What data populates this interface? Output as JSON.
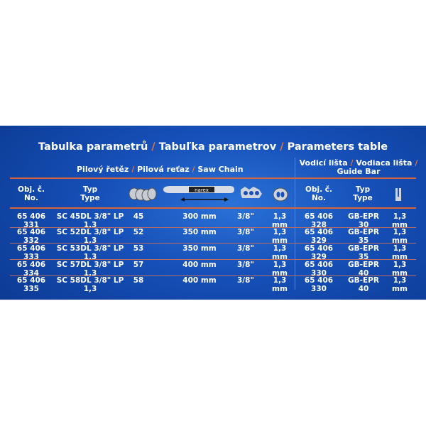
{
  "title": {
    "cz": "Tabulka parametrů",
    "sk": "Tabuľka parametrov",
    "en": "Parameters table",
    "sep": "/"
  },
  "chain_header": {
    "cz": "Pilový řetěz",
    "sk": "Pilová reťaz",
    "en": "Saw Chain"
  },
  "bar_header": {
    "cz": "Vodicí lišta",
    "sk": "Vodiaca lišta",
    "en": "Guide Bar"
  },
  "columns": {
    "obj_cz": "Obj. č.",
    "obj_en": "No.",
    "typ_cz": "Typ",
    "typ_en": "Type",
    "icons": [
      "drive-links-icon",
      "bar-length-icon",
      "chain-pitch-icon",
      "gauge-icon",
      "bar-groove-icon"
    ],
    "bar_logo": "narex"
  },
  "accent": "#e8733a",
  "rows": [
    {
      "obj": "65 406 331",
      "type": "SC 45DL 3/8\" LP 1,3",
      "links": "45",
      "length": "300 mm",
      "pitch": "3/8\"",
      "gauge": "1,3 mm",
      "bar_obj": "65 406 328",
      "bar_type": "GB-EPR 30",
      "bar_gauge": "1,3 mm"
    },
    {
      "obj": "65 406 332",
      "type": "SC 52DL 3/8\" LP 1,3",
      "links": "52",
      "length": "350 mm",
      "pitch": "3/8\"",
      "gauge": "1,3 mm",
      "bar_obj": "65 406 329",
      "bar_type": "GB-EPR 35",
      "bar_gauge": "1,3 mm"
    },
    {
      "obj": "65 406 333",
      "type": "SC 53DL 3/8\" LP 1,3",
      "links": "53",
      "length": "350 mm",
      "pitch": "3/8\"",
      "gauge": "1,3 mm",
      "bar_obj": "65 406 329",
      "bar_type": "GB-EPR 35",
      "bar_gauge": "1,3 mm"
    },
    {
      "obj": "65 406 334",
      "type": "SC 57DL 3/8\" LP 1,3",
      "links": "57",
      "length": "400 mm",
      "pitch": "3/8\"",
      "gauge": "1,3 mm",
      "bar_obj": "65 406 330",
      "bar_type": "GB-EPR 40",
      "bar_gauge": "1,3 mm"
    },
    {
      "obj": "65 406 335",
      "type": "SC 58DL 3/8\" LP 1,3",
      "links": "58",
      "length": "400 mm",
      "pitch": "3/8\"",
      "gauge": "1,3 mm",
      "bar_obj": "65 406 330",
      "bar_type": "GB-EPR 40",
      "bar_gauge": "1,3 mm"
    }
  ]
}
